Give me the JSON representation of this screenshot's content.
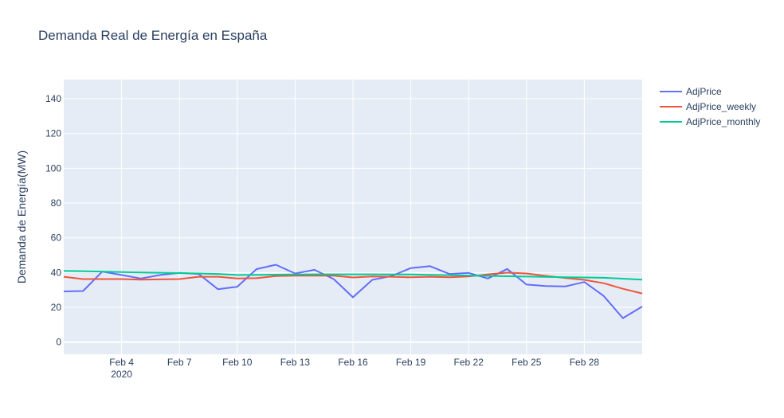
{
  "chart_data": {
    "type": "line",
    "title": "Demanda Real de Energía en España",
    "xlabel": "",
    "ylabel": "Demanda de Energía(MW)",
    "xlim": [
      "2020-02-01",
      "2020-03-02"
    ],
    "ylim": [
      -7,
      151
    ],
    "grid": true,
    "legend_position": "right",
    "x_ticks": [
      {
        "date": "2020-02-04",
        "label": "Feb 4",
        "sublabel": "2020"
      },
      {
        "date": "2020-02-07",
        "label": "Feb 7",
        "sublabel": ""
      },
      {
        "date": "2020-02-10",
        "label": "Feb 10",
        "sublabel": ""
      },
      {
        "date": "2020-02-13",
        "label": "Feb 13",
        "sublabel": ""
      },
      {
        "date": "2020-02-16",
        "label": "Feb 16",
        "sublabel": ""
      },
      {
        "date": "2020-02-19",
        "label": "Feb 19",
        "sublabel": ""
      },
      {
        "date": "2020-02-22",
        "label": "Feb 22",
        "sublabel": ""
      },
      {
        "date": "2020-02-25",
        "label": "Feb 25",
        "sublabel": ""
      },
      {
        "date": "2020-02-28",
        "label": "Feb 28",
        "sublabel": ""
      }
    ],
    "y_ticks": [
      0,
      20,
      40,
      60,
      80,
      100,
      120,
      140
    ],
    "x": [
      "2020-02-01",
      "2020-02-02",
      "2020-02-03",
      "2020-02-04",
      "2020-02-05",
      "2020-02-06",
      "2020-02-07",
      "2020-02-08",
      "2020-02-09",
      "2020-02-10",
      "2020-02-11",
      "2020-02-12",
      "2020-02-13",
      "2020-02-14",
      "2020-02-15",
      "2020-02-16",
      "2020-02-17",
      "2020-02-18",
      "2020-02-19",
      "2020-02-20",
      "2020-02-21",
      "2020-02-22",
      "2020-02-23",
      "2020-02-24",
      "2020-02-25",
      "2020-02-26",
      "2020-02-27",
      "2020-02-28",
      "2020-02-29",
      "2020-03-01",
      "2020-03-02"
    ],
    "series": [
      {
        "name": "AdjPrice",
        "color": "#636efa",
        "values": [
          29.2,
          29.4,
          40.6,
          38.6,
          36.6,
          38.6,
          39.8,
          39.2,
          30.4,
          31.9,
          42.0,
          44.5,
          39.5,
          41.6,
          36.3,
          25.8,
          35.8,
          38.0,
          42.6,
          43.7,
          39.2,
          39.8,
          36.6,
          42.1,
          33.1,
          32.3,
          32.0,
          34.6,
          26.6,
          13.8,
          20.5
        ]
      },
      {
        "name": "AdjPrice_weekly",
        "color": "#ef553b",
        "values": [
          37.6,
          36.3,
          36.3,
          36.3,
          35.9,
          36.1,
          36.3,
          37.6,
          37.6,
          36.6,
          36.8,
          38.0,
          38.2,
          38.2,
          38.2,
          37.2,
          37.8,
          37.6,
          37.3,
          37.6,
          37.3,
          37.8,
          39.0,
          40.0,
          39.5,
          38.1,
          36.9,
          35.8,
          33.9,
          30.7,
          28.0
        ]
      },
      {
        "name": "AdjPrice_monthly",
        "color": "#00cc96",
        "values": [
          41.0,
          40.8,
          40.6,
          40.3,
          40.1,
          39.9,
          39.7,
          39.5,
          39.2,
          38.6,
          38.7,
          38.8,
          38.9,
          39.0,
          39.0,
          39.0,
          39.0,
          38.9,
          38.9,
          38.7,
          38.5,
          38.3,
          38.1,
          37.9,
          37.7,
          37.5,
          37.3,
          37.2,
          37.0,
          36.5,
          35.9
        ]
      }
    ]
  }
}
